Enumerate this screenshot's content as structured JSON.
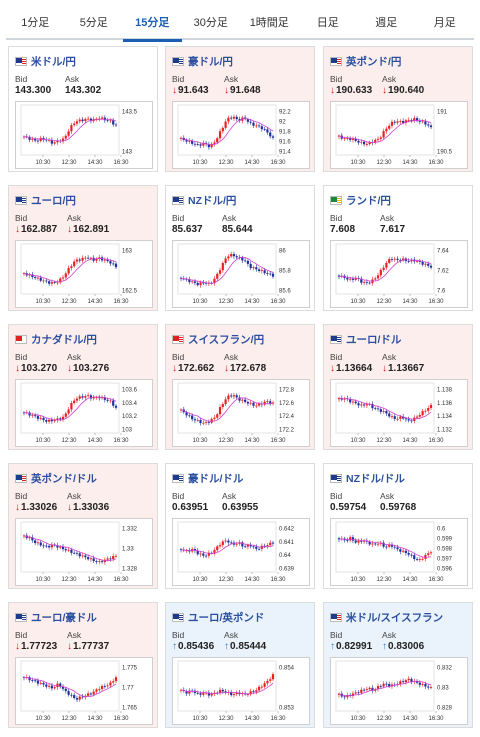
{
  "tabs": [
    {
      "label": "1分足",
      "active": false
    },
    {
      "label": "5分足",
      "active": false
    },
    {
      "label": "15分足",
      "active": true
    },
    {
      "label": "30分足",
      "active": false
    },
    {
      "label": "1時間足",
      "active": false
    },
    {
      "label": "日足",
      "active": false
    },
    {
      "label": "週足",
      "active": false
    },
    {
      "label": "月足",
      "active": false
    }
  ],
  "labels": {
    "bid": "Bid",
    "ask": "Ask"
  },
  "x_ticks": [
    "10:30",
    "12:30",
    "14:30",
    "16:30"
  ],
  "colors": {
    "up": "#e8201f",
    "down": "#1f2f9e",
    "ma": "#d040d0",
    "accent": "#1a5fb4"
  },
  "cards": [
    {
      "name": "米ドル/円",
      "flag": "us",
      "trend": "neutral",
      "bid": "143.300",
      "ask": "143.302",
      "dir": "",
      "y_ticks": [
        "143.5",
        "143"
      ],
      "shape": [
        0.35,
        0.3,
        0.25,
        0.3,
        0.28,
        0.2,
        0.25,
        0.3,
        0.55,
        0.7,
        0.72,
        0.75,
        0.72,
        0.78,
        0.74,
        0.7,
        0.6
      ]
    },
    {
      "name": "豪ドル/円",
      "flag": "au",
      "trend": "down",
      "bid": "91.643",
      "ask": "91.648",
      "dir": "down",
      "y_ticks": [
        "92.2",
        "92",
        "91.8",
        "91.6",
        "91.4"
      ],
      "shape": [
        0.3,
        0.25,
        0.2,
        0.15,
        0.2,
        0.12,
        0.25,
        0.5,
        0.75,
        0.8,
        0.72,
        0.78,
        0.65,
        0.6,
        0.55,
        0.45,
        0.3
      ]
    },
    {
      "name": "英ポンド/円",
      "flag": "uk",
      "trend": "down",
      "bid": "190.633",
      "ask": "190.640",
      "dir": "down",
      "y_ticks": [
        "191",
        "190.5"
      ],
      "shape": [
        0.35,
        0.3,
        0.3,
        0.25,
        0.2,
        0.18,
        0.25,
        0.3,
        0.5,
        0.65,
        0.7,
        0.68,
        0.72,
        0.75,
        0.7,
        0.65,
        0.55
      ]
    },
    {
      "name": "ユーロ/円",
      "flag": "eu",
      "trend": "down",
      "bid": "162.887",
      "ask": "162.891",
      "dir": "down",
      "y_ticks": [
        "163",
        "162.5"
      ],
      "shape": [
        0.4,
        0.35,
        0.3,
        0.25,
        0.2,
        0.18,
        0.22,
        0.35,
        0.55,
        0.7,
        0.72,
        0.78,
        0.7,
        0.75,
        0.7,
        0.65,
        0.55
      ]
    },
    {
      "name": "NZドル/円",
      "flag": "nz",
      "trend": "neutral",
      "bid": "85.637",
      "ask": "85.644",
      "dir": "",
      "y_ticks": [
        "86",
        "85.8",
        "85.6"
      ],
      "shape": [
        0.3,
        0.25,
        0.2,
        0.15,
        0.2,
        0.15,
        0.3,
        0.55,
        0.8,
        0.82,
        0.75,
        0.7,
        0.55,
        0.5,
        0.45,
        0.4,
        0.35
      ]
    },
    {
      "name": "ランド/円",
      "flag": "za",
      "trend": "neutral",
      "bid": "7.608",
      "ask": "7.617",
      "dir": "",
      "y_ticks": [
        "7.64",
        "7.62",
        "7.6"
      ],
      "shape": [
        0.35,
        0.3,
        0.25,
        0.3,
        0.2,
        0.18,
        0.25,
        0.4,
        0.6,
        0.75,
        0.7,
        0.72,
        0.68,
        0.7,
        0.65,
        0.6,
        0.55
      ]
    },
    {
      "name": "カナダドル/円",
      "flag": "ca",
      "trend": "down",
      "bid": "103.270",
      "ask": "103.276",
      "dir": "down",
      "y_ticks": [
        "103.6",
        "103.4",
        "103.2",
        "103"
      ],
      "shape": [
        0.4,
        0.35,
        0.3,
        0.25,
        0.2,
        0.22,
        0.25,
        0.3,
        0.55,
        0.72,
        0.75,
        0.78,
        0.72,
        0.75,
        0.7,
        0.65,
        0.5
      ]
    },
    {
      "name": "スイスフラン/円",
      "flag": "ch",
      "trend": "down",
      "bid": "172.662",
      "ask": "172.678",
      "dir": "down",
      "y_ticks": [
        "172.8",
        "172.6",
        "172.4",
        "172.2"
      ],
      "shape": [
        0.45,
        0.35,
        0.25,
        0.2,
        0.15,
        0.2,
        0.3,
        0.55,
        0.75,
        0.8,
        0.7,
        0.65,
        0.6,
        0.55,
        0.6,
        0.65,
        0.6
      ]
    },
    {
      "name": "ユーロ/ドル",
      "flag": "eu",
      "trend": "down",
      "bid": "1.13664",
      "ask": "1.13667",
      "dir": "down",
      "y_ticks": [
        "1.138",
        "1.136",
        "1.134",
        "1.132"
      ],
      "shape": [
        0.7,
        0.72,
        0.65,
        0.6,
        0.55,
        0.6,
        0.5,
        0.45,
        0.4,
        0.3,
        0.25,
        0.3,
        0.2,
        0.25,
        0.35,
        0.45,
        0.55
      ]
    },
    {
      "name": "英ポンド/ドル",
      "flag": "uk",
      "trend": "down",
      "bid": "1.33026",
      "ask": "1.33036",
      "dir": "down",
      "y_ticks": [
        "1.332",
        "1.33",
        "1.328"
      ],
      "shape": [
        0.75,
        0.7,
        0.6,
        0.55,
        0.5,
        0.55,
        0.5,
        0.45,
        0.4,
        0.35,
        0.3,
        0.25,
        0.2,
        0.15,
        0.2,
        0.25,
        0.3
      ]
    },
    {
      "name": "豪ドル/ドル",
      "flag": "au",
      "trend": "neutral",
      "bid": "0.63951",
      "ask": "0.63955",
      "dir": "",
      "y_ticks": [
        "0.642",
        "0.641",
        "0.64",
        "0.639"
      ],
      "shape": [
        0.45,
        0.4,
        0.45,
        0.35,
        0.3,
        0.35,
        0.45,
        0.6,
        0.65,
        0.55,
        0.6,
        0.5,
        0.55,
        0.45,
        0.5,
        0.55,
        0.6
      ]
    },
    {
      "name": "NZドル/ドル",
      "flag": "nz",
      "trend": "neutral",
      "bid": "0.59754",
      "ask": "0.59768",
      "dir": "",
      "y_ticks": [
        "0.6",
        "0.599",
        "0.598",
        "0.597",
        "0.596"
      ],
      "shape": [
        0.7,
        0.65,
        0.7,
        0.6,
        0.65,
        0.6,
        0.55,
        0.6,
        0.5,
        0.55,
        0.45,
        0.4,
        0.35,
        0.25,
        0.2,
        0.3,
        0.4
      ]
    },
    {
      "name": "ユーロ/豪ドル",
      "flag": "eu",
      "trend": "down",
      "bid": "1.77723",
      "ask": "1.77737",
      "dir": "down",
      "y_ticks": [
        "1.775",
        "1.77",
        "1.765"
      ],
      "shape": [
        0.7,
        0.65,
        0.6,
        0.55,
        0.5,
        0.45,
        0.55,
        0.4,
        0.3,
        0.2,
        0.25,
        0.3,
        0.35,
        0.45,
        0.5,
        0.55,
        0.7
      ]
    },
    {
      "name": "ユーロ/英ポンド",
      "flag": "eu",
      "trend": "up",
      "bid": "0.85436",
      "ask": "0.85444",
      "dir": "up",
      "y_ticks": [
        "0.854",
        "0.853"
      ],
      "shape": [
        0.4,
        0.35,
        0.4,
        0.3,
        0.35,
        0.3,
        0.35,
        0.4,
        0.35,
        0.3,
        0.35,
        0.3,
        0.35,
        0.4,
        0.5,
        0.6,
        0.75
      ]
    },
    {
      "name": "米ドル/スイスフラン",
      "flag": "us",
      "trend": "up",
      "bid": "0.82991",
      "ask": "0.83006",
      "dir": "up",
      "y_ticks": [
        "0.832",
        "0.83",
        "0.828"
      ],
      "shape": [
        0.3,
        0.25,
        0.3,
        0.35,
        0.4,
        0.45,
        0.4,
        0.5,
        0.55,
        0.5,
        0.55,
        0.6,
        0.65,
        0.6,
        0.55,
        0.5,
        0.45
      ]
    }
  ]
}
